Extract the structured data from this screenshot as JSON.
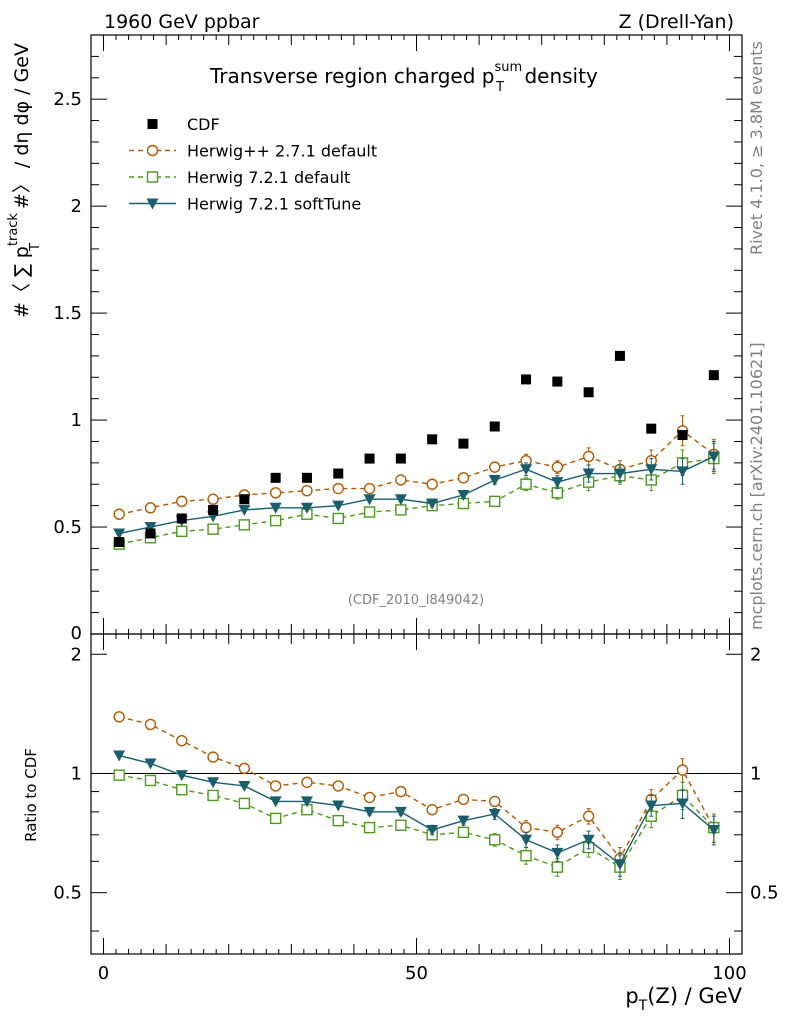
{
  "header": {
    "left": "1960 GeV ppbar",
    "right": "Z (Drell-Yan)"
  },
  "side_text": {
    "top": "Rivet 4.1.0, ≥ 3.8M events",
    "bottom": "mcplots.cern.ch [arXiv:2401.10621]"
  },
  "chart_data": {
    "type": "scatter",
    "title_main": "Transverse region charged p",
    "title_sub": "T",
    "title_sup": "sum",
    "title_end": " density",
    "analysis_id": "(CDF_2010_I849042)",
    "xlabel": "p_T(Z) / GeV",
    "xlabel_main": "p",
    "xlabel_sub": "T",
    "xlabel_end": "(Z) / GeV",
    "ylabel": "#〈 ∑ p_T^track #〉 / dη dφ / GeV",
    "ylabel_pre": "#〈 ∑ p",
    "ylabel_sub": "T",
    "ylabel_sup": "track",
    "ylabel_end": " #〉 / dη dφ / GeV",
    "ratio_ylabel": "Ratio to CDF",
    "xlim": [
      -2,
      102
    ],
    "ylim": [
      0,
      2.8
    ],
    "ratio_ylim": [
      0.35,
      2.25
    ],
    "xticks": [
      0,
      50,
      100
    ],
    "yticks": [
      0.5,
      1,
      1.5,
      2,
      2.5
    ],
    "ytick_labels": [
      "0.5",
      "1",
      "1.5",
      "2",
      "2.5"
    ],
    "y_zero_label": "0",
    "ratio_yticks": [
      0.5,
      1,
      2
    ],
    "ratio_ytick_labels": [
      "0.5",
      "1",
      "2"
    ],
    "x": [
      2.5,
      7.5,
      12.5,
      17.5,
      22.5,
      27.5,
      32.5,
      37.5,
      42.5,
      47.5,
      52.5,
      57.5,
      62.5,
      67.5,
      72.5,
      77.5,
      82.5,
      87.5,
      92.5,
      97.5
    ],
    "legend": [
      "CDF",
      "Herwig++ 2.7.1 default",
      "Herwig 7.2.1 default",
      "Herwig 7.2.1 softTune"
    ],
    "series": [
      {
        "name": "CDF",
        "color": "#000000",
        "marker": "square-filled",
        "line": "none",
        "values": [
          0.43,
          0.47,
          0.54,
          0.58,
          0.63,
          0.73,
          0.73,
          0.75,
          0.82,
          0.82,
          0.91,
          0.89,
          0.97,
          1.19,
          1.18,
          1.13,
          1.3,
          0.96,
          0.93,
          1.21
        ],
        "errors": [
          0.01,
          0.01,
          0.01,
          0.01,
          0.01,
          0.01,
          0.01,
          0.01,
          0.01,
          0.01,
          0.01,
          0.01,
          0.01,
          0.01,
          0.01,
          0.01,
          0.01,
          0.01,
          0.01,
          0.01
        ]
      },
      {
        "name": "Herwig++ 2.7.1 default",
        "color": "#b35900",
        "marker": "circle-open",
        "line": "dashed",
        "values": [
          0.56,
          0.59,
          0.62,
          0.63,
          0.65,
          0.66,
          0.67,
          0.68,
          0.68,
          0.72,
          0.7,
          0.73,
          0.78,
          0.81,
          0.78,
          0.83,
          0.77,
          0.81,
          0.95,
          0.84
        ],
        "errors": [
          0.004,
          0.004,
          0.005,
          0.005,
          0.006,
          0.007,
          0.008,
          0.009,
          0.01,
          0.012,
          0.014,
          0.016,
          0.02,
          0.03,
          0.03,
          0.04,
          0.04,
          0.05,
          0.07,
          0.07
        ]
      },
      {
        "name": "Herwig 7.2.1 default",
        "color": "#4c9a1c",
        "marker": "square-open",
        "line": "dashed",
        "values": [
          0.42,
          0.45,
          0.48,
          0.49,
          0.51,
          0.53,
          0.56,
          0.54,
          0.57,
          0.58,
          0.6,
          0.61,
          0.62,
          0.7,
          0.66,
          0.71,
          0.74,
          0.72,
          0.8,
          0.82
        ],
        "errors": [
          0.004,
          0.004,
          0.005,
          0.005,
          0.006,
          0.007,
          0.008,
          0.009,
          0.01,
          0.012,
          0.014,
          0.016,
          0.02,
          0.03,
          0.03,
          0.04,
          0.04,
          0.05,
          0.06,
          0.07
        ]
      },
      {
        "name": "Herwig 7.2.1 softTune",
        "color": "#1a5e6e",
        "marker": "triangle-down-filled",
        "line": "solid",
        "values": [
          0.47,
          0.5,
          0.53,
          0.55,
          0.58,
          0.59,
          0.59,
          0.6,
          0.63,
          0.63,
          0.61,
          0.65,
          0.72,
          0.77,
          0.71,
          0.75,
          0.75,
          0.77,
          0.76,
          0.83
        ],
        "errors": [
          0.004,
          0.004,
          0.005,
          0.005,
          0.006,
          0.007,
          0.008,
          0.009,
          0.01,
          0.012,
          0.014,
          0.016,
          0.02,
          0.03,
          0.03,
          0.04,
          0.04,
          0.05,
          0.06,
          0.07
        ]
      }
    ],
    "ratio_series": [
      {
        "name": "Herwig++ 2.7.1 default",
        "values": [
          1.39,
          1.33,
          1.21,
          1.1,
          1.03,
          0.93,
          0.95,
          0.93,
          0.87,
          0.9,
          0.81,
          0.86,
          0.85,
          0.73,
          0.71,
          0.78,
          0.61,
          0.86,
          1.02,
          0.73
        ],
        "errors": [
          0.01,
          0.01,
          0.01,
          0.01,
          0.01,
          0.01,
          0.01,
          0.01,
          0.015,
          0.015,
          0.02,
          0.02,
          0.025,
          0.03,
          0.03,
          0.035,
          0.04,
          0.05,
          0.07,
          0.06
        ]
      },
      {
        "name": "Herwig 7.2.1 default",
        "values": [
          0.99,
          0.96,
          0.91,
          0.88,
          0.84,
          0.77,
          0.81,
          0.76,
          0.73,
          0.74,
          0.7,
          0.71,
          0.68,
          0.62,
          0.58,
          0.65,
          0.58,
          0.78,
          0.88,
          0.73
        ],
        "errors": [
          0.01,
          0.01,
          0.01,
          0.01,
          0.01,
          0.01,
          0.01,
          0.01,
          0.015,
          0.015,
          0.02,
          0.02,
          0.025,
          0.03,
          0.03,
          0.035,
          0.04,
          0.05,
          0.07,
          0.06
        ]
      },
      {
        "name": "Herwig 7.2.1 softTune",
        "values": [
          1.11,
          1.06,
          0.99,
          0.95,
          0.93,
          0.85,
          0.85,
          0.83,
          0.8,
          0.8,
          0.72,
          0.76,
          0.79,
          0.68,
          0.63,
          0.68,
          0.59,
          0.83,
          0.84,
          0.72
        ],
        "errors": [
          0.01,
          0.01,
          0.01,
          0.01,
          0.01,
          0.01,
          0.01,
          0.01,
          0.015,
          0.015,
          0.02,
          0.02,
          0.025,
          0.03,
          0.03,
          0.035,
          0.04,
          0.05,
          0.07,
          0.06
        ]
      }
    ]
  }
}
